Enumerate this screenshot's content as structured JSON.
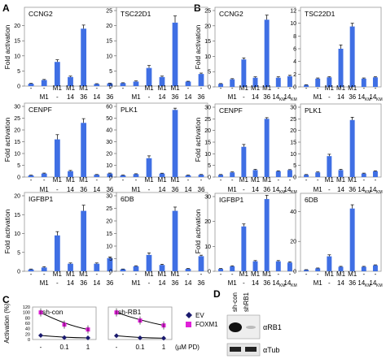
{
  "panel_letters": [
    "A",
    "B",
    "C",
    "D"
  ],
  "colors": {
    "bar": "#3f6fe4",
    "bar_light": "#6c93f1",
    "ev": "#1a1a6e",
    "foxm1": "#e020d8",
    "line": "#000000"
  },
  "fold_label": "Fold activation",
  "cond_row1": [
    "-",
    "-",
    "M1",
    "M1",
    "M1",
    "-",
    "-"
  ],
  "cond_row2_A": [
    "",
    "M1",
    "-",
    "14",
    "36",
    "14",
    "36"
  ],
  "cond_row2_B_base": [
    "",
    "M1",
    "-",
    "14",
    "36",
    "14",
    "14"
  ],
  "km_sub": "KM",
  "chart_data": [
    {
      "panel": "A",
      "title": "CCNG2",
      "type": "bar",
      "ylim": [
        0,
        25
      ],
      "yticks": [
        0,
        5,
        10,
        15,
        20
      ],
      "values": [
        0.8,
        2.0,
        8.0,
        3.0,
        19.0,
        0.7,
        0.9
      ],
      "errors": [
        0.1,
        0.2,
        0.7,
        0.3,
        1.2,
        0.1,
        0.1
      ]
    },
    {
      "panel": "A",
      "title": "TSC22D1",
      "type": "bar",
      "ylim": [
        0,
        25
      ],
      "yticks": [
        0,
        5,
        10,
        15,
        20,
        25
      ],
      "values": [
        1.0,
        1.5,
        6.0,
        3.0,
        21.0,
        1.5,
        4.0
      ],
      "errors": [
        0.1,
        0.2,
        0.8,
        0.3,
        2.2,
        0.1,
        0.3
      ]
    },
    {
      "panel": "A",
      "title": "CENPF",
      "type": "bar",
      "ylim": [
        0,
        30
      ],
      "yticks": [
        0,
        5,
        10,
        15,
        20,
        25,
        30
      ],
      "values": [
        0.7,
        1.5,
        16.0,
        2.5,
        23.0,
        1.0,
        1.5
      ],
      "errors": [
        0.1,
        0.2,
        2.0,
        0.3,
        1.8,
        0.1,
        0.2
      ]
    },
    {
      "panel": "A",
      "title": "PLK1",
      "type": "bar",
      "ylim": [
        0,
        60
      ],
      "yticks": [
        0,
        10,
        20,
        30,
        40,
        50,
        60
      ],
      "values": [
        1.5,
        2.5,
        16.0,
        3.0,
        57.0,
        1.5,
        2.0
      ],
      "errors": [
        0.2,
        0.3,
        2.0,
        0.3,
        1.5,
        0.2,
        0.2
      ]
    },
    {
      "panel": "A",
      "title": "IGFBP1",
      "type": "bar",
      "ylim": [
        0,
        20
      ],
      "yticks": [
        0,
        5,
        10,
        15,
        20
      ],
      "values": [
        0.5,
        1.0,
        9.5,
        2.0,
        16.0,
        2.0,
        3.5
      ],
      "errors": [
        0.1,
        0.2,
        1.0,
        0.2,
        1.5,
        0.2,
        0.3
      ]
    },
    {
      "panel": "A",
      "title": "6DB",
      "type": "bar",
      "ylim": [
        0,
        30
      ],
      "yticks": [
        0,
        5,
        10,
        15,
        20,
        25,
        30
      ],
      "values": [
        0.8,
        2.0,
        6.5,
        2.5,
        24.0,
        1.0,
        6.0
      ],
      "errors": [
        0.1,
        0.2,
        0.8,
        0.3,
        1.5,
        0.1,
        0.4
      ]
    },
    {
      "panel": "B",
      "title": "CCNG2",
      "type": "bar",
      "ylim": [
        0,
        25
      ],
      "yticks": [
        0,
        5,
        10,
        15,
        20,
        25
      ],
      "values": [
        1.0,
        2.5,
        9.0,
        3.0,
        22.0,
        3.0,
        3.5
      ],
      "errors": [
        0.1,
        0.2,
        0.5,
        0.3,
        1.5,
        0.3,
        0.3
      ]
    },
    {
      "panel": "B",
      "title": "TSC22D1",
      "type": "bar",
      "ylim": [
        0,
        12
      ],
      "yticks": [
        0,
        2,
        4,
        6,
        8,
        10,
        12
      ],
      "values": [
        0.3,
        1.3,
        1.5,
        6.0,
        9.5,
        1.3,
        1.5
      ],
      "errors": [
        0.05,
        0.1,
        0.1,
        0.6,
        0.5,
        0.1,
        0.1
      ]
    },
    {
      "panel": "B",
      "title": "CENPF",
      "type": "bar",
      "ylim": [
        0,
        30
      ],
      "yticks": [
        0,
        5,
        10,
        15,
        20,
        25,
        30
      ],
      "values": [
        1.0,
        2.0,
        13.0,
        3.0,
        25.0,
        2.5,
        3.0
      ],
      "errors": [
        0.1,
        0.2,
        1.0,
        0.3,
        0.5,
        0.2,
        0.2
      ]
    },
    {
      "panel": "B",
      "title": "PLK1",
      "type": "bar",
      "ylim": [
        0,
        30
      ],
      "yticks": [
        0,
        5,
        10,
        15,
        20,
        25,
        30
      ],
      "values": [
        1.0,
        2.0,
        9.0,
        3.0,
        24.5,
        1.5,
        2.5
      ],
      "errors": [
        0.1,
        0.2,
        0.8,
        0.3,
        1.2,
        0.2,
        0.2
      ]
    },
    {
      "panel": "B",
      "title": "IGFBP1",
      "type": "bar",
      "ylim": [
        0,
        30
      ],
      "yticks": [
        0,
        10,
        20,
        30
      ],
      "values": [
        1.0,
        2.0,
        18.0,
        4.0,
        29.0,
        4.0,
        3.5
      ],
      "errors": [
        0.1,
        0.2,
        1.0,
        0.3,
        1.5,
        0.3,
        0.3
      ]
    },
    {
      "panel": "B",
      "title": "6DB",
      "type": "bar",
      "ylim": [
        0,
        50
      ],
      "yticks": [
        0,
        20,
        40
      ],
      "values": [
        1.0,
        2.0,
        10.0,
        3.0,
        42.0,
        3.0,
        4.0
      ],
      "errors": [
        0.1,
        0.2,
        1.0,
        0.3,
        2.5,
        0.3,
        0.3
      ]
    },
    {
      "panel": "C",
      "title": "sh-con",
      "type": "line",
      "ylabel": "Activation (%)",
      "ylim": [
        0,
        120
      ],
      "yticks": [
        0,
        20,
        40,
        60,
        80,
        100,
        120
      ],
      "x": [
        "-",
        "0.1",
        "1"
      ],
      "series": [
        {
          "name": "EV",
          "values": [
            15,
            7,
            6
          ]
        },
        {
          "name": "FOXM1",
          "values": [
            100,
            55,
            37
          ]
        }
      ]
    },
    {
      "panel": "C",
      "title": "sh-RB1",
      "type": "line",
      "ylim": [
        0,
        120
      ],
      "yticks": [
        0,
        20,
        40,
        60,
        80,
        100,
        120
      ],
      "x": [
        "-",
        "0.1",
        "1"
      ],
      "xunit": "(µM PD)",
      "series": [
        {
          "name": "EV",
          "values": [
            14,
            6,
            5
          ]
        },
        {
          "name": "FOXM1",
          "values": [
            100,
            70,
            52
          ]
        }
      ]
    }
  ],
  "blot": {
    "lanes": [
      "sh-con",
      "shRB1"
    ],
    "rows": [
      "αRB1",
      "αTub"
    ]
  }
}
